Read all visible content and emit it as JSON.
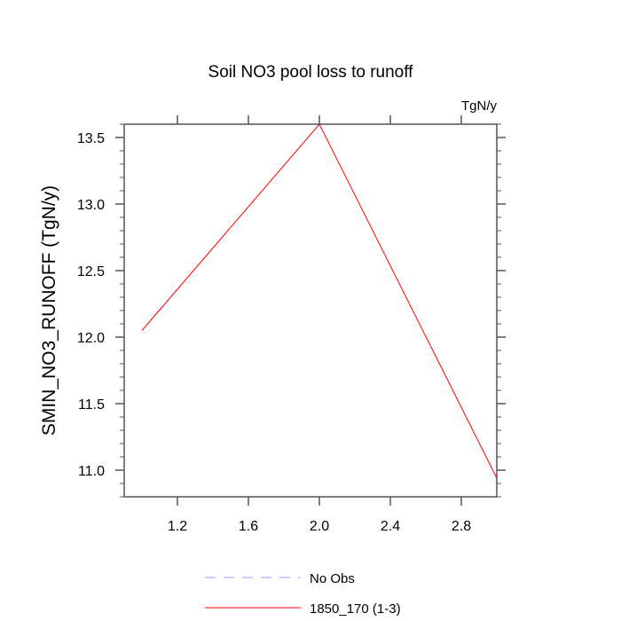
{
  "chart_data": {
    "type": "line",
    "title": "Soil NO3 pool loss to runoff",
    "units_label": "TgN/y",
    "xlabel": "",
    "ylabel": "SMIN_NO3_RUNOFF  (TgN/y)",
    "xlim": [
      0.9,
      3.0
    ],
    "ylim": [
      10.8,
      13.6
    ],
    "x_ticks": [
      "1.2",
      "1.6",
      "2.0",
      "2.4",
      "2.8"
    ],
    "x_tick_values": [
      1.2,
      1.6,
      2.0,
      2.4,
      2.8
    ],
    "y_ticks": [
      "11.0",
      "11.5",
      "12.0",
      "12.5",
      "13.0",
      "13.5"
    ],
    "y_tick_values": [
      11.0,
      11.5,
      12.0,
      12.5,
      13.0,
      13.5
    ],
    "grid": false,
    "legend_placement": "bottom",
    "series": [
      {
        "name": "No Obs",
        "x": [],
        "values": [],
        "color": "#9999ff",
        "dash": true
      },
      {
        "name": "1850_170 (1-3)",
        "x": [
          1,
          2,
          3
        ],
        "values": [
          12.05,
          13.6,
          10.94
        ],
        "color": "#ff0000",
        "dash": false
      }
    ]
  }
}
